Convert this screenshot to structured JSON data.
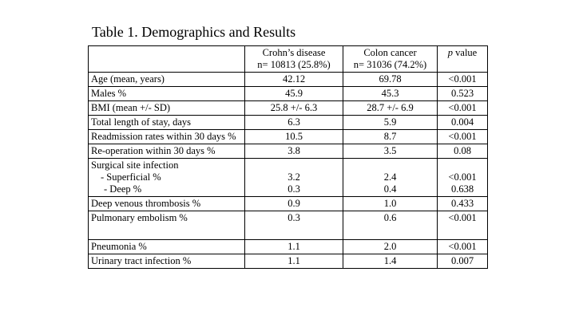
{
  "title": "Table 1. Demographics and Results",
  "header": {
    "col1": "",
    "crohns_line1": "Crohn’s disease",
    "crohns_line2": "n= 10813 (25.8%)",
    "colon_line1": "Colon cancer",
    "colon_line2": "n= 31036 (74.2%)",
    "p_italic": "p",
    "p_rest": " value"
  },
  "rows": {
    "age": {
      "label": "Age (mean, years)",
      "crohns": "42.12",
      "colon": "69.78",
      "p": "<0.001"
    },
    "males": {
      "label": "Males %",
      "crohns": "45.9",
      "colon": "45.3",
      "p": "0.523"
    },
    "bmi": {
      "label": "BMI (mean +/- SD)",
      "crohns": "25.8 +/- 6.3",
      "colon": "28.7 +/- 6.9",
      "p": "<0.001"
    },
    "los": {
      "label": "Total length of stay, days",
      "crohns": "6.3",
      "colon": "5.9",
      "p": "0.004"
    },
    "readmission": {
      "label": "Readmission rates within 30 days %",
      "crohns": "10.5",
      "colon": "8.7",
      "p": "<0.001"
    },
    "reoperation": {
      "label": "Re-operation within 30 days %",
      "crohns": "3.8",
      "colon": "3.5",
      "p": "0.08"
    },
    "ssi": {
      "label": "Surgical site infection",
      "superficial_label": "- Superficial %",
      "deep_label": "- Deep %",
      "superficial": {
        "crohns": "3.2",
        "colon": "2.4",
        "p": "<0.001"
      },
      "deep": {
        "crohns": "0.3",
        "colon": "0.4",
        "p": "0.638"
      }
    },
    "dvt": {
      "label": "Deep venous thrombosis %",
      "crohns": "0.9",
      "colon": "1.0",
      "p": "0.433"
    },
    "pe": {
      "label": "Pulmonary embolism %",
      "crohns": "0.3",
      "colon": "0.6",
      "p": "<0.001"
    },
    "pneumonia": {
      "label": "Pneumonia %",
      "crohns": "1.1",
      "colon": "2.0",
      "p": "<0.001"
    },
    "uti": {
      "label": "Urinary tract infection %",
      "crohns": "1.1",
      "colon": "1.4",
      "p": "0.007"
    }
  }
}
